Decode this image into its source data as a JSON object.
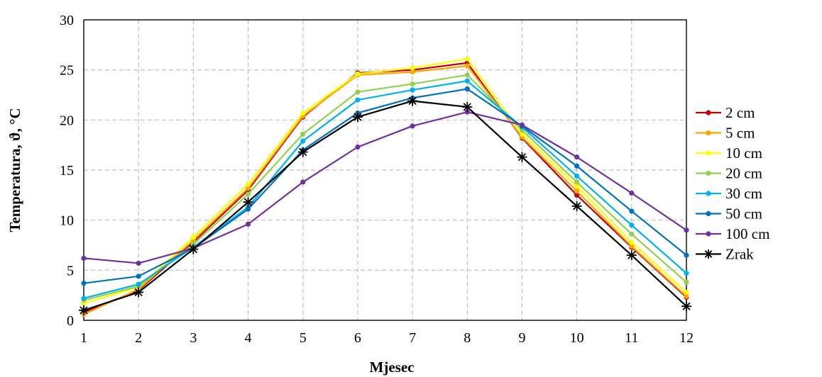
{
  "chart_data": {
    "type": "line",
    "title": "",
    "xlabel": "Mjesec",
    "ylabel": "Temperatura, ϑ, °C",
    "x": [
      1,
      2,
      3,
      4,
      5,
      6,
      7,
      8,
      9,
      10,
      11,
      12
    ],
    "xlim": [
      1,
      12
    ],
    "ylim": [
      0,
      30
    ],
    "yticks": [
      0,
      5,
      10,
      15,
      20,
      25,
      30
    ],
    "grid": true,
    "legend_position": "right",
    "series": [
      {
        "name": "2 cm",
        "color": "#c00000",
        "marker": "dot",
        "values": [
          0.8,
          3.0,
          7.8,
          13.0,
          20.3,
          24.7,
          25.0,
          25.7,
          18.2,
          12.5,
          7.3,
          2.3
        ]
      },
      {
        "name": "5 cm",
        "color": "#ffa500",
        "marker": "dot",
        "values": [
          0.6,
          3.1,
          8.0,
          13.2,
          20.4,
          24.5,
          24.8,
          25.4,
          18.3,
          12.9,
          7.4,
          2.4
        ]
      },
      {
        "name": "10 cm",
        "color": "#ffff00",
        "marker": "dot",
        "values": [
          1.7,
          3.3,
          8.3,
          13.6,
          20.7,
          24.6,
          25.2,
          26.1,
          18.6,
          13.4,
          7.8,
          2.8
        ]
      },
      {
        "name": "20 cm",
        "color": "#92d050",
        "marker": "dot",
        "values": [
          2.0,
          3.4,
          7.6,
          12.6,
          18.6,
          22.8,
          23.6,
          24.5,
          19.0,
          13.8,
          8.6,
          3.8
        ]
      },
      {
        "name": "30 cm",
        "color": "#00b0f0",
        "marker": "dot",
        "values": [
          2.2,
          3.6,
          7.3,
          11.3,
          17.9,
          22.0,
          23.0,
          23.9,
          19.3,
          14.4,
          9.5,
          4.7
        ]
      },
      {
        "name": "50 cm",
        "color": "#0070c0",
        "marker": "dot",
        "values": [
          3.7,
          4.4,
          7.2,
          11.1,
          17.0,
          20.7,
          22.2,
          23.1,
          19.4,
          15.4,
          10.9,
          6.5
        ]
      },
      {
        "name": "100 cm",
        "color": "#7030a0",
        "marker": "dot",
        "values": [
          6.2,
          5.7,
          7.2,
          9.6,
          13.8,
          17.3,
          19.4,
          20.8,
          19.5,
          16.3,
          12.7,
          9.0
        ]
      },
      {
        "name": "Zrak",
        "color": "#000000",
        "marker": "star",
        "values": [
          1.0,
          2.8,
          7.1,
          11.8,
          16.8,
          20.3,
          21.9,
          21.3,
          16.3,
          11.4,
          6.5,
          1.4
        ]
      }
    ]
  }
}
